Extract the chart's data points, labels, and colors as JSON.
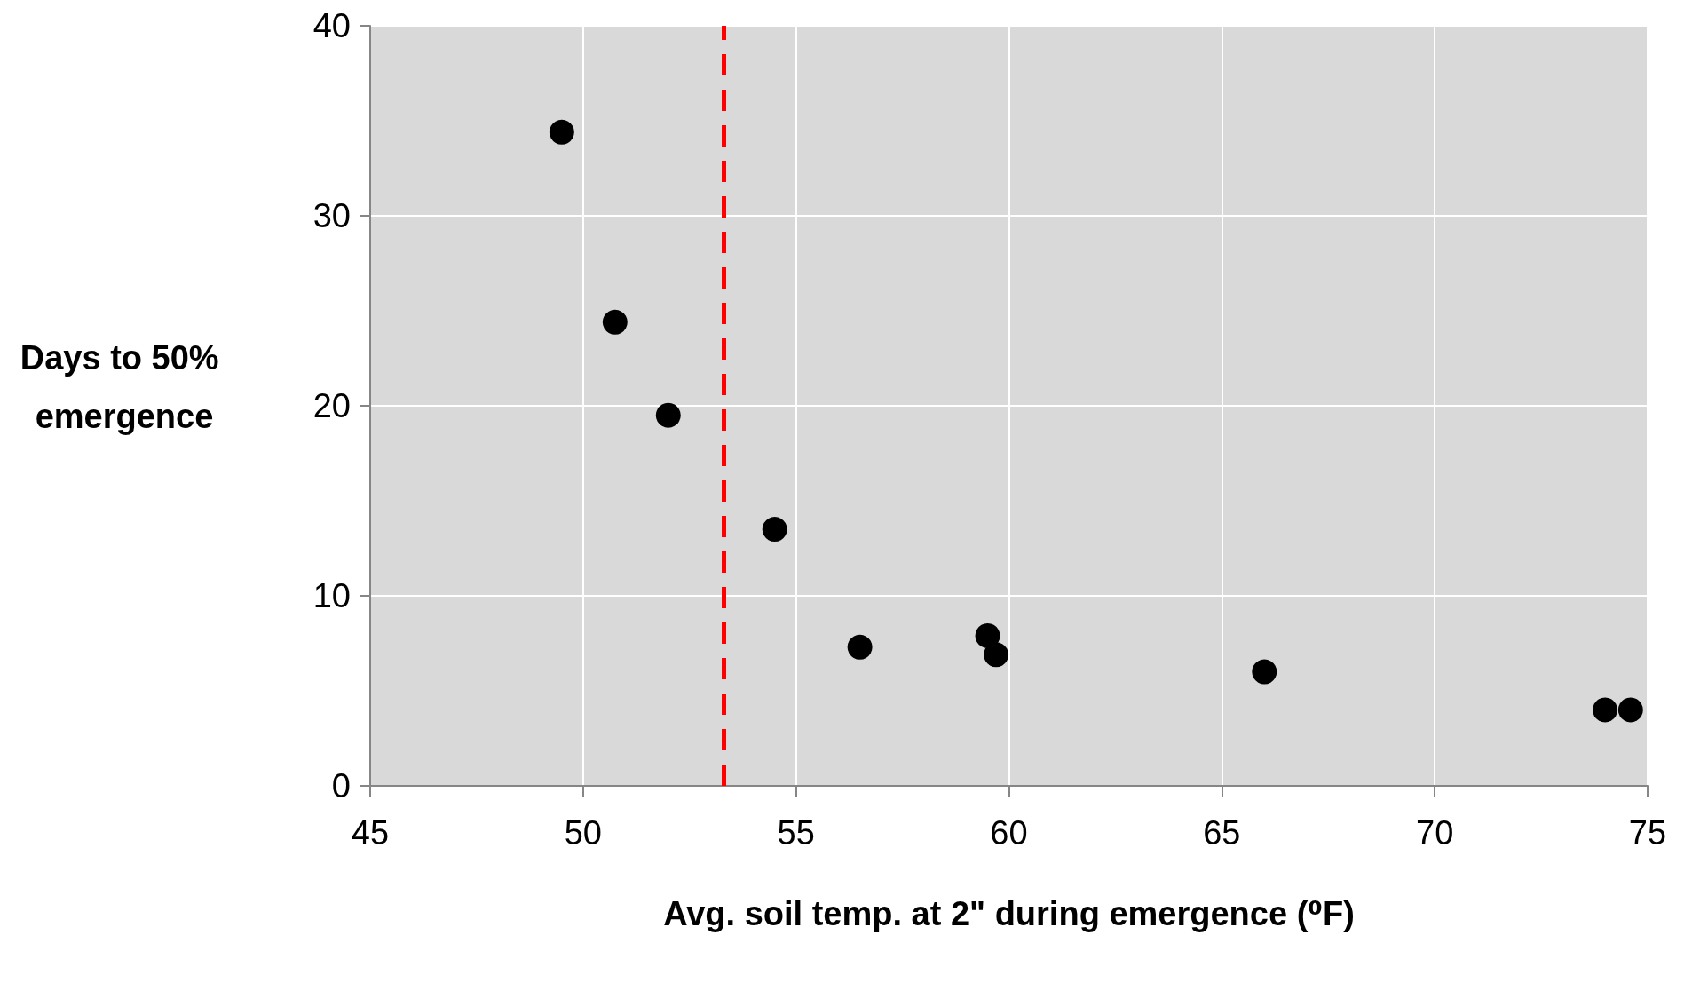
{
  "chart_data": {
    "type": "scatter",
    "xlabel": "Avg. soil temp. at 2\" during emergence (⁰F)",
    "ylabel": "Days to 50% emergence",
    "x": [
      49.5,
      50.75,
      52.0,
      54.5,
      56.5,
      59.5,
      59.7,
      66.0,
      74.0,
      74.6
    ],
    "series": [
      {
        "color": "#000000",
        "values": [
          34.4,
          24.4,
          19.5,
          13.5,
          7.3,
          7.9,
          6.9,
          6.0,
          4.0,
          4.0
        ]
      }
    ],
    "xlim": [
      45,
      75
    ],
    "xticks": [
      45,
      50,
      55,
      60,
      65,
      70,
      75
    ],
    "ylim": [
      0,
      40
    ],
    "yticks": [
      0,
      10,
      20,
      30,
      40
    ],
    "ref_lines": [
      {
        "axis": "x",
        "value": 53.3,
        "color": "#ff0000",
        "line_style": "dashed"
      }
    ],
    "grid": true,
    "marker": "circle"
  }
}
